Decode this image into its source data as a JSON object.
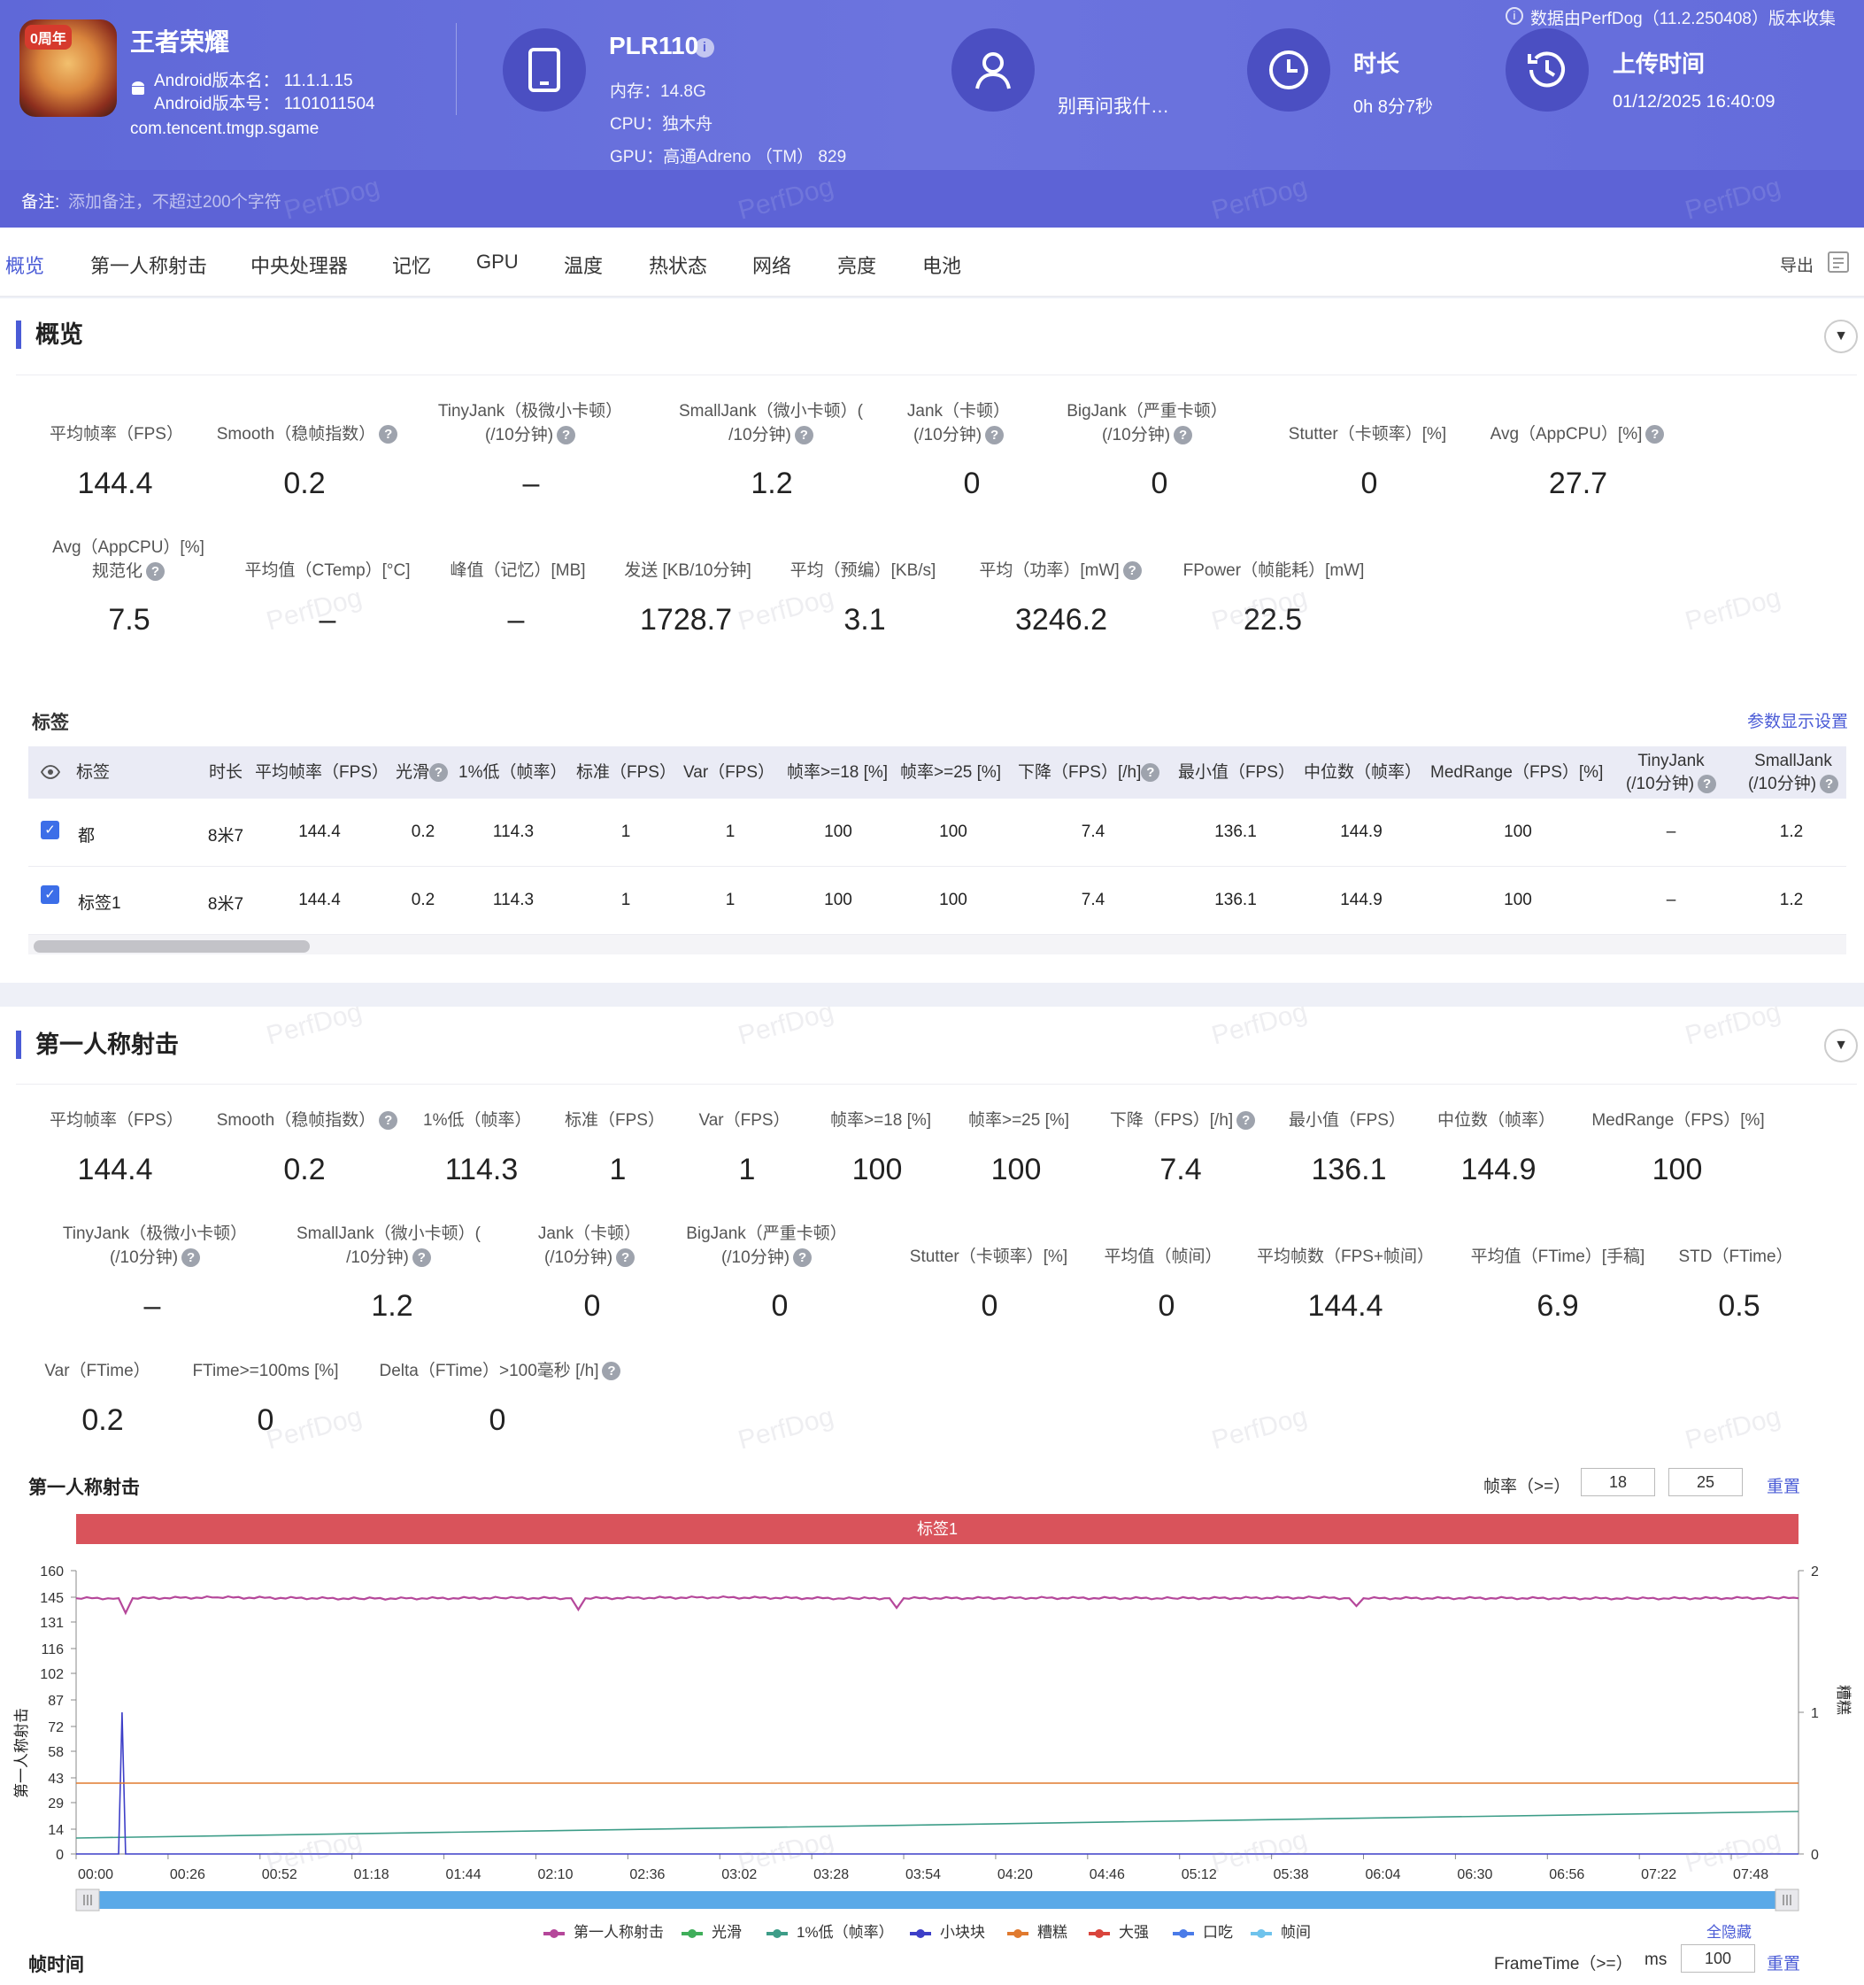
{
  "header": {
    "app_name": "王者荣耀",
    "app_badge": "0周年",
    "android_version_name": "Android版本名： 11.1.1.15",
    "android_version_code": "Android版本号： 1101011504",
    "package": "com.tencent.tmgp.sgame",
    "device_model": "PLR110",
    "memory": "内存：14.8G",
    "cpu": "CPU：独木舟",
    "gpu": "GPU：高通Adreno （TM） 829",
    "user": "别再问我什…",
    "duration_label": "时长",
    "duration_value": "0h 8分7秒",
    "upload_label": "上传时间",
    "upload_value": "01/12/2025 16:40:09",
    "collected_by": "数据由PerfDog（11.2.250408）版本收集",
    "note_label": "备注:",
    "note_placeholder": "添加备注，不超过200个字符",
    "watermark": "PerfDog"
  },
  "tabs": [
    "概览",
    "第一人称射击",
    "中央处理器",
    "记忆",
    "GPU",
    "温度",
    "热状态",
    "网络",
    "亮度",
    "电池"
  ],
  "export_label": "导出",
  "overview": {
    "title": "概览",
    "row1": [
      {
        "label": "平均帧率（FPS）",
        "value": "144.4"
      },
      {
        "label": "Smooth（稳帧指数）",
        "value": "0.2",
        "help": true
      },
      {
        "label": "TinyJank（极微小卡顿）",
        "label2": "(/10分钟)",
        "value": "–",
        "help": true
      },
      {
        "label": "SmallJank（微小卡顿）(",
        "label2": "/10分钟)",
        "value": "1.2",
        "help": true
      },
      {
        "label": "Jank（卡顿）",
        "label2": "(/10分钟)",
        "value": "0",
        "help": true
      },
      {
        "label": "BigJank（严重卡顿）",
        "label2": "(/10分钟)",
        "value": "0",
        "help": true
      },
      {
        "label": "Stutter（卡顿率）[%]",
        "value": "0"
      },
      {
        "label": "Avg（AppCPU）[%]",
        "value": "27.7",
        "help": true
      }
    ],
    "row2": [
      {
        "label": "Avg（AppCPU）[%]",
        "label2": "规范化",
        "value": "7.5",
        "help": true
      },
      {
        "label": "平均值（CTemp）[°C]",
        "value": "–"
      },
      {
        "label": "峰值（记忆）[MB]",
        "value": "–"
      },
      {
        "label": "发送 [KB/10分钟]",
        "value": "1728.7"
      },
      {
        "label": "平均（预编）[KB/s]",
        "value": "3.1"
      },
      {
        "label": "平均（功率）[mW]",
        "value": "3246.2",
        "help": true
      },
      {
        "label": "FPower（帧能耗）[mW]",
        "value": "22.5"
      }
    ]
  },
  "tags": {
    "title": "标签",
    "settings_link": "参数显示设置",
    "columns": [
      "标签",
      "时长",
      "平均帧率（FPS）",
      "光滑",
      "1%低（帧率）",
      "标准（FPS）",
      "Var（FPS）",
      "帧率>=18 [%]",
      "帧率>=25 [%]",
      "下降（FPS）[/h]",
      "最小值（FPS）",
      "中位数（帧率）",
      "MedRange（FPS）[%]",
      "TinyJank",
      "SmallJank"
    ],
    "columns_sub": {
      "TinyJank": "(/10分钟)",
      "SmallJank": "(/10分钟)"
    },
    "rows": [
      [
        "都",
        "8米7",
        "144.4",
        "0.2",
        "114.3",
        "1",
        "1",
        "100",
        "100",
        "7.4",
        "136.1",
        "144.9",
        "100",
        "–",
        "1.2"
      ],
      [
        "标签1",
        "8米7",
        "144.4",
        "0.2",
        "114.3",
        "1",
        "1",
        "100",
        "100",
        "7.4",
        "136.1",
        "144.9",
        "100",
        "–",
        "1.2"
      ]
    ]
  },
  "fps": {
    "title": "第一人称射击",
    "row1": [
      {
        "label": "平均帧率（FPS）",
        "value": "144.4"
      },
      {
        "label": "Smooth（稳帧指数）",
        "value": "0.2",
        "help": true
      },
      {
        "label": "1%低（帧率）",
        "value": "114.3"
      },
      {
        "label": "标准（FPS）",
        "value": "1"
      },
      {
        "label": "Var（FPS）",
        "value": "1"
      },
      {
        "label": "帧率>=18 [%]",
        "value": "100"
      },
      {
        "label": "帧率>=25 [%]",
        "value": "100"
      },
      {
        "label": "下降（FPS）[/h]",
        "value": "7.4",
        "help": true
      },
      {
        "label": "最小值（FPS）",
        "value": "136.1"
      },
      {
        "label": "中位数（帧率）",
        "value": "144.9"
      },
      {
        "label": "MedRange（FPS）[%]",
        "value": "100"
      }
    ],
    "row2": [
      {
        "label": "TinyJank（极微小卡顿）",
        "label2": "(/10分钟)",
        "value": "–",
        "help": true
      },
      {
        "label": "SmallJank（微小卡顿）(",
        "label2": "/10分钟)",
        "value": "1.2",
        "help": true
      },
      {
        "label": "Jank（卡顿）",
        "label2": "(/10分钟)",
        "value": "0",
        "help": true
      },
      {
        "label": "BigJank（严重卡顿）",
        "label2": "(/10分钟)",
        "value": "0",
        "help": true
      },
      {
        "label": "Stutter（卡顿率）[%]",
        "value": "0"
      },
      {
        "label": "平均值（帧间）",
        "value": "0"
      },
      {
        "label": "平均帧数（FPS+帧间）",
        "value": "144.4"
      },
      {
        "label": "平均值（FTime）[手稿]",
        "value": "6.9"
      },
      {
        "label": "STD（FTime）",
        "value": "0.5"
      }
    ],
    "row3": [
      {
        "label": "Var（FTime）",
        "value": "0.2"
      },
      {
        "label": "FTime>=100ms [%]",
        "value": "0"
      },
      {
        "label": "Delta（FTime）>100毫秒 [/h]",
        "value": "0",
        "help": true
      }
    ],
    "chart_title": "第一人称射击",
    "threshold_label": "帧率（>=）",
    "threshold_1": "18",
    "threshold_2": "25",
    "reset_label": "重置",
    "hide_all_label": "全隐藏"
  },
  "frametime": {
    "title": "帧时间",
    "threshold_label": "FrameTime（>=）",
    "unit": "ms",
    "threshold_value": "100",
    "reset_label": "重置"
  },
  "chart_data": {
    "type": "line",
    "title": "第一人称射击",
    "tag_band": "标签1",
    "ylabel": "第一人称射击",
    "y2label": "糟糕",
    "yticks": [
      "0",
      "14",
      "29",
      "43",
      "58",
      "72",
      "87",
      "102",
      "116",
      "131",
      "145",
      "160"
    ],
    "ylim": [
      0,
      160
    ],
    "y2ticks": [
      "0",
      "1",
      "2"
    ],
    "y2lim": [
      0,
      2
    ],
    "xticks": [
      "00:00",
      "00:26",
      "00:52",
      "01:18",
      "01:44",
      "02:10",
      "02:36",
      "03:02",
      "03:28",
      "03:54",
      "04:20",
      "04:46",
      "05:12",
      "05:38",
      "06:04",
      "06:30",
      "06:56",
      "07:22",
      "07:48"
    ],
    "xlim_seconds": [
      0,
      487
    ],
    "legend": [
      "第一人称射击",
      "光滑",
      "1%低（帧率）",
      "小块块",
      "糟糕",
      "大强",
      "口吃",
      "帧间"
    ],
    "series": [
      {
        "name": "第一人称射击",
        "color": "#b5479a",
        "x": [
          0,
          12,
          14,
          16,
          40,
          80,
          120,
          140,
          142,
          144,
          180,
          220,
          230,
          232,
          234,
          270,
          310,
          350,
          360,
          362,
          364,
          400,
          440,
          480,
          487
        ],
        "y": [
          144.4,
          144.4,
          136.1,
          144.4,
          144.9,
          144.2,
          144.6,
          144.4,
          138,
          144.4,
          144.9,
          144.3,
          144.4,
          139,
          144.4,
          144.6,
          144.4,
          144.8,
          144.4,
          140,
          144.4,
          144.5,
          144.3,
          144.6,
          144.4
        ]
      },
      {
        "name": "1%低（帧率）",
        "color": "#3d9d88",
        "x": [
          0,
          487
        ],
        "y": [
          9,
          24
        ]
      },
      {
        "name": "小块块",
        "color": "#3d3fc8",
        "x": [
          0,
          12,
          13,
          14,
          15,
          487
        ],
        "y": [
          0,
          0,
          80,
          0,
          0,
          0
        ]
      },
      {
        "name": "糟糕",
        "color": "#e07a2f",
        "x": [
          0,
          487
        ],
        "y": [
          0.5,
          0.5
        ]
      }
    ]
  },
  "colors": {
    "accent": "#4a5bd6",
    "header": "#6a72dd",
    "tag_band": "#d9535b",
    "scrollbar": "#5aa9e8"
  }
}
